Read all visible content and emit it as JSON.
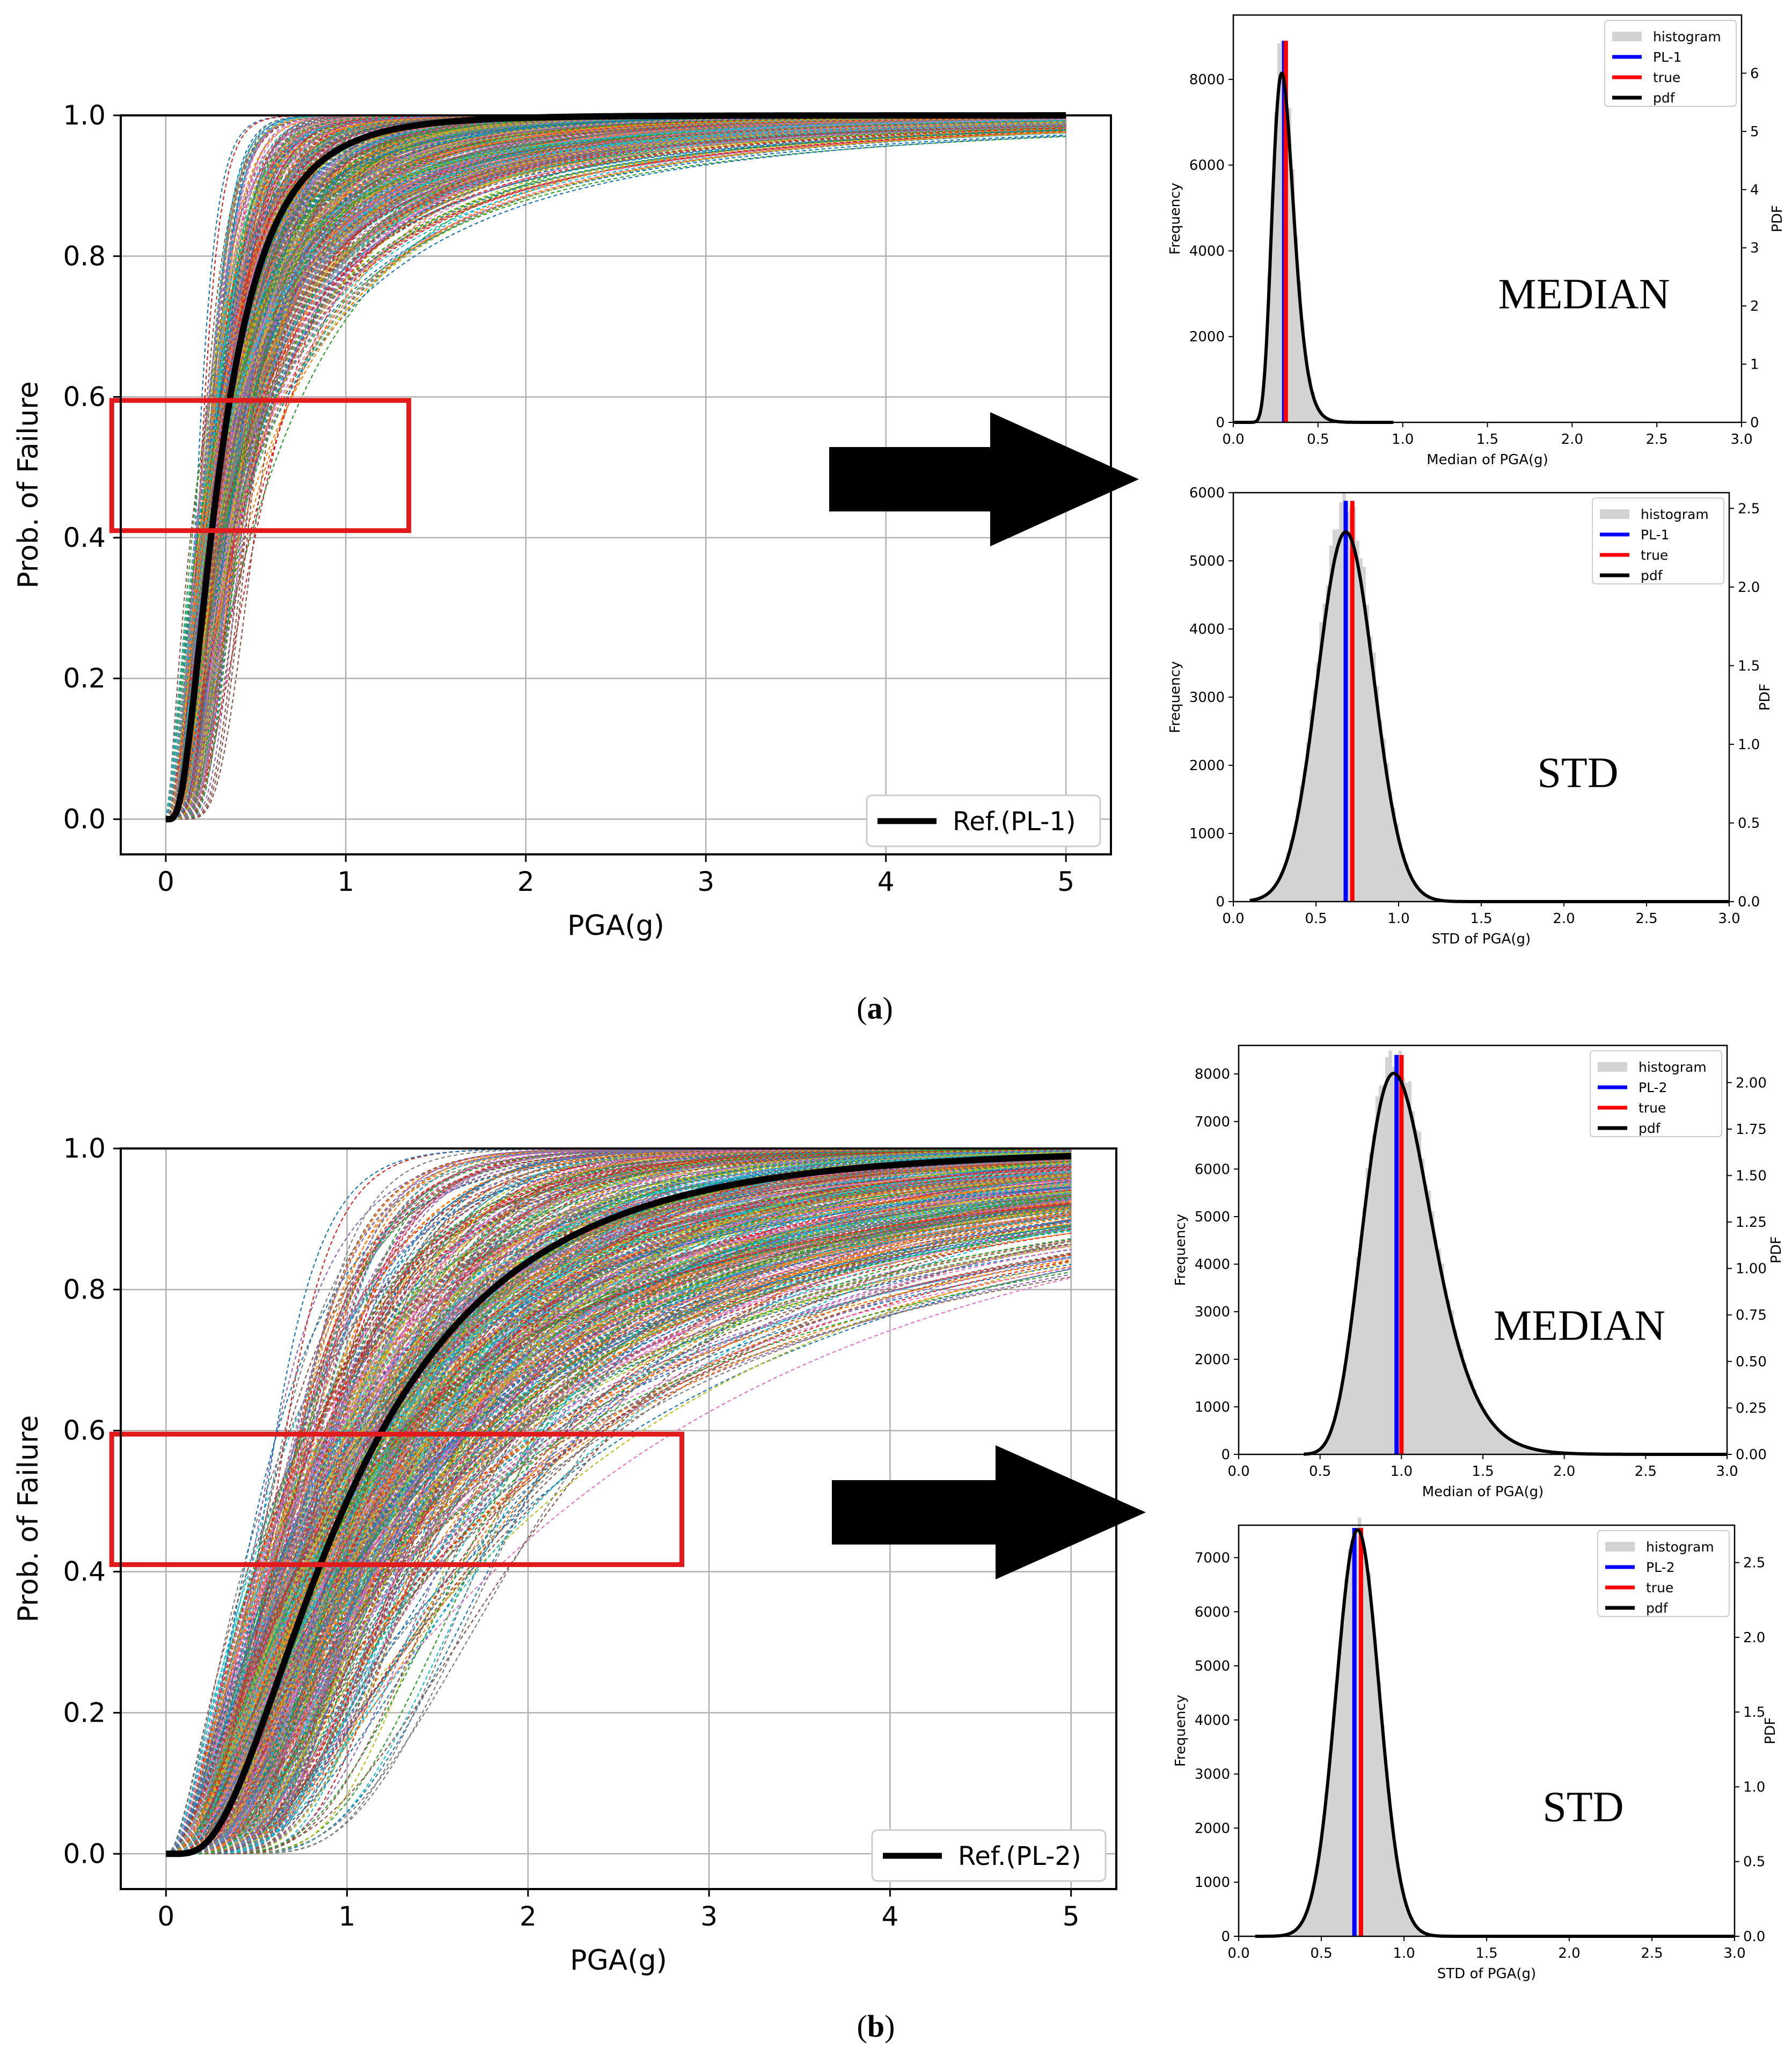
{
  "figure": {
    "panels": [
      {
        "caption": "a",
        "fragility": {
          "reference_legend": "Ref.(PL-1)",
          "highlight_box": {
            "pga_range": [
              -0.3,
              1.35
            ],
            "prob_range": [
              0.41,
              0.595
            ]
          }
        },
        "median_hist": {
          "annotation": "MEDIAN",
          "legend": [
            "histogram",
            "PL-1",
            "true",
            "pdf"
          ]
        },
        "std_hist": {
          "annotation": "STD",
          "legend": [
            "histogram",
            "PL-1",
            "true",
            "pdf"
          ]
        }
      },
      {
        "caption": "b",
        "fragility": {
          "reference_legend": "Ref.(PL-2)",
          "highlight_box": {
            "pga_range": [
              -0.3,
              2.85
            ],
            "prob_range": [
              0.41,
              0.595
            ]
          }
        },
        "median_hist": {
          "annotation": "MEDIAN",
          "legend": [
            "histogram",
            "PL-2",
            "true",
            "pdf"
          ]
        },
        "std_hist": {
          "annotation": "STD",
          "legend": [
            "histogram",
            "PL-2",
            "true",
            "pdf"
          ]
        }
      }
    ]
  },
  "chart_data": [
    {
      "id": "a-fragility",
      "type": "line",
      "xlabel": "PGA(g)",
      "ylabel": "Prob. of Failure",
      "xlim": [
        -0.25,
        5.25
      ],
      "ylim": [
        -0.05,
        1.0
      ],
      "xticks": [
        0,
        1,
        2,
        3,
        4,
        5
      ],
      "yticks": [
        "0.0",
        "0.2",
        "0.4",
        "0.6",
        "0.8",
        "1.0"
      ],
      "grid": true,
      "legend_location": "lower-right",
      "series": [
        {
          "name": "Ref.(PL-1)",
          "model": "lognormal_cdf",
          "median": 0.3,
          "beta": 0.7,
          "color": "#000000"
        }
      ],
      "samples": {
        "count": 600,
        "median_range": [
          0.17,
          0.62
        ],
        "beta_range": [
          0.35,
          1.3
        ],
        "style": "dashed-multicolor"
      }
    },
    {
      "id": "a-median",
      "type": "bar",
      "xlabel": "Median of PGA(g)",
      "ylabel": "Frequency",
      "y2label": "PDF",
      "xlim": [
        0.0,
        3.0
      ],
      "ylim": [
        0,
        9500
      ],
      "y2lim": [
        0,
        7.0
      ],
      "xticks": [
        "0.0",
        "0.5",
        "1.0",
        "1.5",
        "2.0",
        "2.5",
        "3.0"
      ],
      "yticks": [
        0,
        2000,
        4000,
        6000,
        8000
      ],
      "y2ticks": [
        0,
        1,
        2,
        3,
        4,
        5,
        6
      ],
      "legend_location": "top-right",
      "histogram": {
        "model": "lognormal",
        "median": 0.3,
        "sigma": 0.22,
        "peak": 8900,
        "x_end": 0.95
      },
      "lines": {
        "PL-1": 0.3,
        "true": 0.31
      },
      "pdf_peak": 6.0
    },
    {
      "id": "a-std",
      "type": "bar",
      "xlabel": "STD of PGA(g)",
      "ylabel": "Frequency",
      "y2label": "PDF",
      "xlim": [
        0.0,
        3.0
      ],
      "ylim": [
        0,
        6000
      ],
      "y2lim": [
        0,
        2.6
      ],
      "xticks": [
        "0.0",
        "0.5",
        "1.0",
        "1.5",
        "2.0",
        "2.5",
        "3.0"
      ],
      "yticks": [
        0,
        1000,
        2000,
        3000,
        4000,
        5000,
        6000
      ],
      "y2ticks": [
        "0.0",
        "0.5",
        "1.0",
        "1.5",
        "2.0",
        "2.5"
      ],
      "legend_location": "top-right",
      "histogram": {
        "model": "normal",
        "mean": 0.68,
        "sd": 0.17,
        "peak": 5880,
        "x_start": 0.1,
        "x_end": 1.55
      },
      "lines": {
        "PL-1": 0.68,
        "true": 0.72
      },
      "pdf_peak": 2.35
    },
    {
      "id": "b-fragility",
      "type": "line",
      "xlabel": "PGA(g)",
      "ylabel": "Prob. of Failure",
      "xlim": [
        -0.25,
        5.25
      ],
      "ylim": [
        -0.05,
        1.0
      ],
      "xticks": [
        0,
        1,
        2,
        3,
        4,
        5
      ],
      "yticks": [
        "0.0",
        "0.2",
        "0.4",
        "0.6",
        "0.8",
        "1.0"
      ],
      "grid": true,
      "legend_location": "lower-right",
      "series": [
        {
          "name": "Ref.(PL-2)",
          "model": "lognormal_cdf",
          "median": 1.0,
          "beta": 0.7,
          "color": "#000000"
        }
      ],
      "samples": {
        "count": 600,
        "median_range": [
          0.45,
          2.6
        ],
        "beta_range": [
          0.35,
          1.2
        ],
        "style": "dashed-multicolor"
      }
    },
    {
      "id": "b-median",
      "type": "bar",
      "xlabel": "Median of PGA(g)",
      "ylabel": "Frequency",
      "y2label": "PDF",
      "xlim": [
        0.0,
        3.0
      ],
      "ylim": [
        0,
        8600
      ],
      "y2lim": [
        0,
        2.2
      ],
      "xticks": [
        "0.0",
        "0.5",
        "1.0",
        "1.5",
        "2.0",
        "2.5",
        "3.0"
      ],
      "yticks": [
        0,
        1000,
        2000,
        3000,
        4000,
        5000,
        6000,
        7000,
        8000
      ],
      "y2ticks": [
        "0.00",
        "0.25",
        "0.50",
        "0.75",
        "1.00",
        "1.25",
        "1.50",
        "1.75",
        "2.00"
      ],
      "legend_location": "top-right",
      "histogram": {
        "model": "lognormal",
        "median": 1.0,
        "sigma": 0.22,
        "peak": 8400,
        "x_start": 0.4,
        "x_end": 2.95
      },
      "lines": {
        "PL-2": 0.97,
        "true": 1.0
      },
      "pdf_peak": 2.05
    },
    {
      "id": "b-std",
      "type": "bar",
      "xlabel": "STD of PGA(g)",
      "ylabel": "Frequency",
      "y2label": "PDF",
      "xlim": [
        0.0,
        3.0
      ],
      "ylim": [
        0,
        7600
      ],
      "y2lim": [
        0,
        2.75
      ],
      "xticks": [
        "0.0",
        "0.5",
        "1.0",
        "1.5",
        "2.0",
        "2.5",
        "3.0"
      ],
      "yticks": [
        0,
        1000,
        2000,
        3000,
        4000,
        5000,
        6000,
        7000
      ],
      "y2ticks": [
        "0.0",
        "0.5",
        "1.0",
        "1.5",
        "2.0",
        "2.5"
      ],
      "legend_location": "top-right",
      "histogram": {
        "model": "normal",
        "mean": 0.72,
        "sd": 0.13,
        "peak": 7550,
        "x_start": 0.1,
        "x_end": 1.75
      },
      "lines": {
        "PL-2": 0.7,
        "true": 0.74
      },
      "pdf_peak": 2.72
    }
  ]
}
